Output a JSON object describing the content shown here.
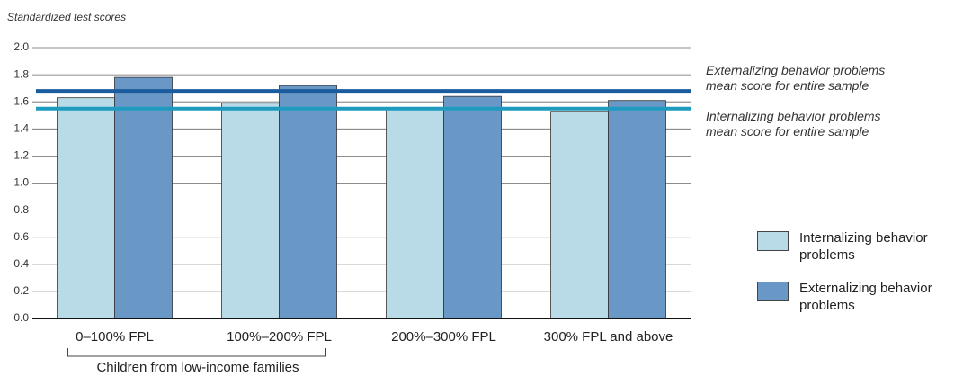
{
  "chart_data": {
    "type": "bar",
    "y_axis_title": "Standardized test scores",
    "categories": [
      "0–100% FPL",
      "100%–200% FPL",
      "200%–300% FPL",
      "300% FPL and above"
    ],
    "series": [
      {
        "name": "Internalizing behavior problems",
        "color": "#b9dbe8",
        "values": [
          1.63,
          1.59,
          1.55,
          1.53
        ]
      },
      {
        "name": "Externalizing behavior problems",
        "color": "#6a98c6",
        "values": [
          1.78,
          1.72,
          1.64,
          1.61
        ]
      }
    ],
    "reference_lines": [
      {
        "label": "Externalizing behavior problems mean score for entire sample",
        "value": 1.68,
        "color": "#1b5c9e"
      },
      {
        "label": "Internalizing behavior problems mean score for entire sample",
        "value": 1.55,
        "color": "#1f9bbf"
      }
    ],
    "bracket_label": "Children from low-income families",
    "ylim": [
      0,
      2
    ],
    "yticks": [
      {
        "value": 0,
        "label": "0.0"
      },
      {
        "value": 0.2,
        "label": "0.2"
      },
      {
        "value": 0.4,
        "label": "0.4"
      },
      {
        "value": 0.6,
        "label": "0.6"
      },
      {
        "value": 0.8,
        "label": "0.8"
      },
      {
        "value": 1,
        "label": "1.0"
      },
      {
        "value": 1.2,
        "label": "1.2"
      },
      {
        "value": 1.4,
        "label": "1.4"
      },
      {
        "value": 1.6,
        "label": "1.6"
      },
      {
        "value": 1.8,
        "label": "1.8"
      },
      {
        "value": 2,
        "label": "2.0"
      }
    ],
    "grid": true
  }
}
